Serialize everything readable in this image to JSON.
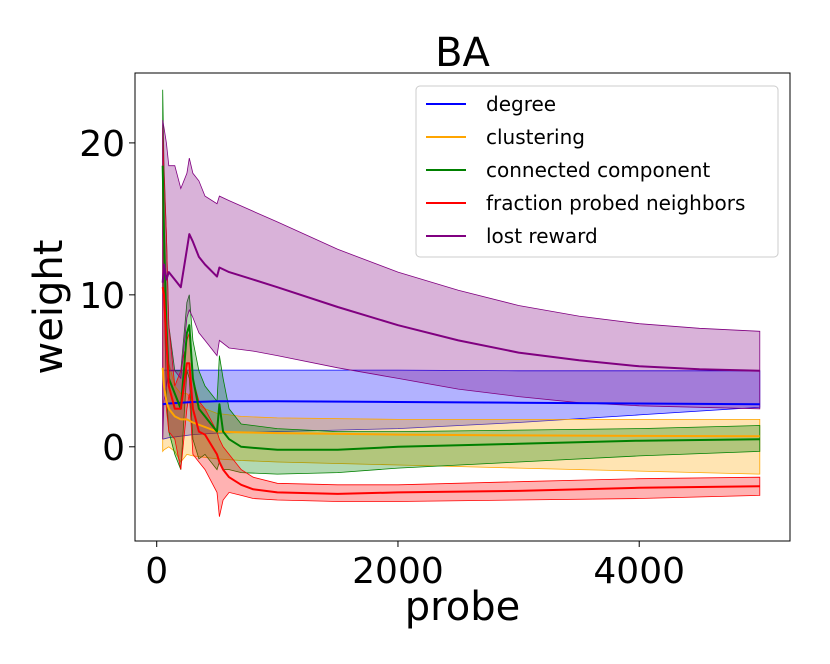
{
  "chart_data": {
    "type": "line",
    "title": "BA",
    "xlabel": "probe",
    "ylabel": "weight",
    "xlim": [
      -180,
      5250
    ],
    "ylim": [
      -6.2,
      24.6
    ],
    "xticks": [
      0,
      2000,
      4000
    ],
    "xtick_labels": [
      "0",
      "2000",
      "4000"
    ],
    "yticks": [
      0,
      10,
      20
    ],
    "ytick_labels": [
      "0",
      "10",
      "20"
    ],
    "grid": false,
    "legend_position": "top-right",
    "series": [
      {
        "name": "degree",
        "color": "#0000ff",
        "x": [
          50,
          100,
          200,
          300,
          500,
          1000,
          2000,
          3000,
          4000,
          5000
        ],
        "mean": [
          2.8,
          2.85,
          2.9,
          2.95,
          3.0,
          3.0,
          2.95,
          2.9,
          2.85,
          2.8
        ],
        "upper": [
          5.05,
          5.05,
          5.05,
          5.05,
          5.05,
          5.05,
          5.05,
          5.0,
          5.0,
          5.0
        ],
        "lower": [
          0.5,
          0.6,
          0.7,
          0.8,
          0.9,
          1.0,
          1.2,
          1.6,
          2.1,
          2.6
        ]
      },
      {
        "name": "clustering",
        "color": "#ffa500",
        "x": [
          50,
          60,
          80,
          100,
          150,
          200,
          250,
          300,
          400,
          500,
          700,
          1000,
          2000,
          3000,
          4000,
          5000
        ],
        "mean": [
          5.2,
          4.0,
          3.0,
          2.5,
          2.0,
          1.8,
          1.8,
          1.6,
          1.3,
          1.0,
          0.95,
          0.9,
          0.8,
          0.75,
          0.72,
          0.7
        ],
        "upper": [
          21.2,
          13.0,
          8.0,
          5.5,
          4.0,
          3.5,
          3.5,
          3.0,
          2.5,
          2.2,
          2.0,
          1.9,
          1.8,
          1.8,
          1.8,
          1.8
        ],
        "lower": [
          -0.3,
          -0.2,
          -0.1,
          0.0,
          -0.3,
          -1.0,
          -0.5,
          -0.6,
          -0.7,
          -0.8,
          -0.9,
          -1.0,
          -1.2,
          -1.4,
          -1.6,
          -1.8
        ]
      },
      {
        "name": "connected component",
        "color": "#008000",
        "x": [
          50,
          60,
          80,
          100,
          150,
          200,
          250,
          270,
          300,
          350,
          400,
          500,
          520,
          550,
          600,
          700,
          1000,
          1500,
          2000,
          3000,
          4000,
          5000
        ],
        "mean": [
          18.5,
          14.0,
          8.0,
          4.5,
          3.5,
          2.5,
          7.5,
          8.0,
          4.5,
          2.5,
          2.0,
          1.0,
          2.8,
          1.0,
          0.5,
          0.0,
          -0.2,
          -0.2,
          0.0,
          0.2,
          0.4,
          0.5
        ],
        "upper": [
          23.5,
          18.5,
          14.0,
          8.0,
          5.0,
          5.0,
          9.5,
          10.0,
          7.0,
          5.0,
          4.0,
          3.0,
          6.0,
          4.5,
          2.5,
          1.5,
          1.2,
          1.0,
          1.0,
          1.1,
          1.2,
          1.4
        ],
        "lower": [
          14.0,
          10.0,
          3.5,
          1.0,
          -0.5,
          -1.5,
          5.0,
          4.5,
          0.5,
          -0.8,
          -0.5,
          -1.5,
          -1.0,
          -1.5,
          -1.5,
          -1.7,
          -1.8,
          -1.7,
          -1.4,
          -1.0,
          -0.6,
          -0.3
        ]
      },
      {
        "name": "fraction probed neighbors",
        "color": "#ff0000",
        "x": [
          50,
          60,
          80,
          100,
          150,
          200,
          250,
          270,
          300,
          350,
          400,
          500,
          520,
          550,
          600,
          700,
          800,
          1000,
          1500,
          2000,
          3000,
          4000,
          5000
        ],
        "mean": [
          10.5,
          10.0,
          7.0,
          4.0,
          2.5,
          2.5,
          5.5,
          5.5,
          2.5,
          1.0,
          0.8,
          -0.5,
          -1.0,
          -1.5,
          -2.0,
          -2.5,
          -2.8,
          -3.0,
          -3.1,
          -3.0,
          -2.9,
          -2.7,
          -2.6
        ],
        "upper": [
          21.0,
          18.0,
          14.0,
          8.0,
          4.0,
          5.0,
          7.0,
          7.5,
          4.5,
          3.0,
          2.5,
          1.0,
          0.5,
          0.0,
          -0.5,
          -1.5,
          -2.0,
          -2.4,
          -2.5,
          -2.5,
          -2.3,
          -2.1,
          -2.0
        ],
        "lower": [
          5.0,
          4.0,
          2.5,
          1.0,
          0.5,
          -1.5,
          2.5,
          3.5,
          -0.5,
          -1.0,
          -1.5,
          -3.0,
          -4.6,
          -3.5,
          -3.0,
          -3.2,
          -3.4,
          -3.5,
          -3.6,
          -3.6,
          -3.5,
          -3.4,
          -3.2
        ]
      },
      {
        "name": "lost reward",
        "color": "#800080",
        "x": [
          50,
          60,
          80,
          100,
          150,
          200,
          250,
          270,
          300,
          350,
          400,
          500,
          520,
          600,
          800,
          1000,
          1500,
          2000,
          2500,
          3000,
          3500,
          4000,
          4500,
          5000
        ],
        "mean": [
          10.8,
          12.0,
          11.0,
          11.5,
          11.0,
          10.5,
          13.0,
          14.0,
          13.5,
          12.5,
          12.0,
          11.2,
          11.8,
          11.5,
          11.0,
          10.5,
          9.2,
          8.0,
          7.0,
          6.2,
          5.7,
          5.3,
          5.1,
          5.0
        ],
        "upper": [
          21.5,
          21.0,
          20.0,
          18.5,
          18.5,
          17.0,
          18.0,
          19.0,
          18.0,
          17.5,
          16.5,
          16.0,
          16.5,
          16.2,
          15.5,
          14.8,
          13.0,
          11.5,
          10.3,
          9.3,
          8.6,
          8.1,
          7.8,
          7.6
        ],
        "lower": [
          0.5,
          3.0,
          4.0,
          5.0,
          5.0,
          4.5,
          8.5,
          9.0,
          8.5,
          7.5,
          7.0,
          6.0,
          7.0,
          6.5,
          6.3,
          6.0,
          5.2,
          4.5,
          3.8,
          3.3,
          2.9,
          2.7,
          2.6,
          2.5
        ]
      }
    ]
  }
}
